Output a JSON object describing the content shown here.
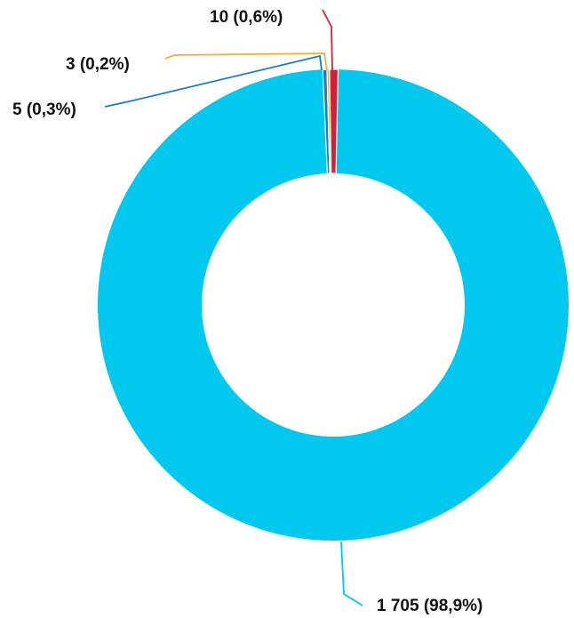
{
  "chart_data": {
    "type": "pie",
    "variant": "donut",
    "title": "",
    "legend": "none",
    "slices": [
      {
        "value": 1705,
        "percent": 98.9,
        "label": "1 705 (98,9%)",
        "color": "#00c8ee"
      },
      {
        "value": 5,
        "percent": 0.3,
        "label": "5 (0,3%)",
        "color": "#1a7fc1"
      },
      {
        "value": 3,
        "percent": 0.2,
        "label": "3 (0,2%)",
        "color": "#f2b134"
      },
      {
        "value": 10,
        "percent": 0.6,
        "label": "10 (0,6%)",
        "color": "#d3203a"
      }
    ],
    "start_angle_deg": 0,
    "direction": "counterclockwise"
  }
}
